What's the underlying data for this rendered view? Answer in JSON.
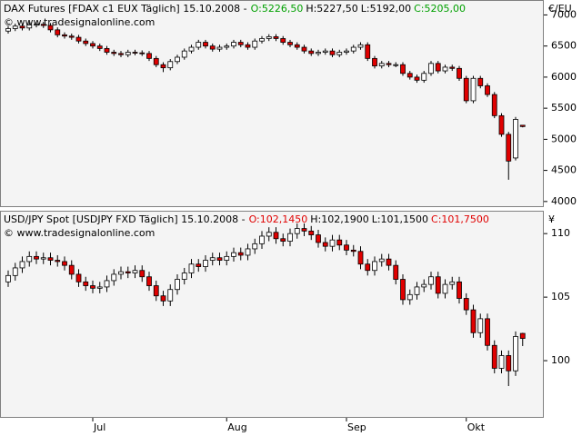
{
  "chart_data": [
    {
      "type": "candlestick",
      "title": "DAX Futures [FDAX c1 EUX  Täglich]  15.10.2008 -",
      "quote": [
        {
          "label": "O:5226,50",
          "color": "#00a000"
        },
        {
          "label": "H:5227,50",
          "color": "#000000"
        },
        {
          "label": "L:5192,00",
          "color": "#000000"
        },
        {
          "label": "C:5205,00",
          "color": "#00a000"
        }
      ],
      "watermark": "© www.tradesignalonline.com",
      "unit": "€/EU",
      "up_color": "#ffffff",
      "down_color": "#e00000",
      "ylim": [
        3910,
        7240
      ],
      "yticks": [
        4000,
        4500,
        5000,
        5500,
        6000,
        6500,
        7000
      ],
      "open": [
        6740,
        6780,
        6820,
        6790,
        6840,
        6850,
        6830,
        6760,
        6680,
        6660,
        6640,
        6580,
        6540,
        6500,
        6460,
        6400,
        6380,
        6360,
        6400,
        6390,
        6380,
        6300,
        6200,
        6150,
        6250,
        6320,
        6420,
        6480,
        6560,
        6500,
        6450,
        6480,
        6500,
        6560,
        6520,
        6480,
        6580,
        6620,
        6650,
        6620,
        6560,
        6520,
        6480,
        6420,
        6380,
        6400,
        6420,
        6360,
        6400,
        6420,
        6480,
        6520,
        6300,
        6180,
        6220,
        6200,
        6200,
        6060,
        6000,
        5950,
        6060,
        6220,
        6100,
        6160,
        6140,
        5980,
        5620,
        5980,
        5860,
        5720,
        5380,
        5080,
        4700,
        5226.5
      ],
      "high": [
        6820,
        6860,
        6860,
        6880,
        6890,
        6890,
        6870,
        6800,
        6720,
        6700,
        6680,
        6620,
        6580,
        6540,
        6500,
        6440,
        6420,
        6440,
        6440,
        6430,
        6420,
        6340,
        6240,
        6290,
        6360,
        6460,
        6520,
        6600,
        6600,
        6540,
        6520,
        6540,
        6600,
        6600,
        6560,
        6620,
        6660,
        6690,
        6690,
        6660,
        6600,
        6560,
        6520,
        6460,
        6440,
        6460,
        6460,
        6440,
        6460,
        6520,
        6560,
        6560,
        6340,
        6260,
        6260,
        6240,
        6240,
        6100,
        6040,
        6100,
        6260,
        6260,
        6200,
        6200,
        6180,
        6020,
        6020,
        6020,
        5900,
        5760,
        5420,
        5120,
        5360,
        5227.5
      ],
      "low": [
        6700,
        6740,
        6750,
        6750,
        6800,
        6790,
        6720,
        6640,
        6620,
        6600,
        6540,
        6500,
        6460,
        6420,
        6360,
        6340,
        6320,
        6320,
        6350,
        6340,
        6260,
        6160,
        6080,
        6110,
        6210,
        6280,
        6380,
        6440,
        6460,
        6410,
        6410,
        6440,
        6460,
        6480,
        6440,
        6440,
        6540,
        6580,
        6580,
        6520,
        6480,
        6440,
        6380,
        6340,
        6340,
        6360,
        6320,
        6320,
        6360,
        6380,
        6440,
        6260,
        6140,
        6140,
        6160,
        6160,
        6020,
        5960,
        5910,
        5910,
        6020,
        6060,
        6060,
        6100,
        5940,
        5580,
        5580,
        5820,
        5680,
        5340,
        5040,
        4350,
        4660,
        5192
      ],
      "close": [
        6780,
        6820,
        6790,
        6840,
        6850,
        6830,
        6760,
        6680,
        6660,
        6640,
        6580,
        6540,
        6500,
        6460,
        6400,
        6380,
        6360,
        6400,
        6390,
        6380,
        6300,
        6200,
        6150,
        6250,
        6320,
        6420,
        6480,
        6560,
        6500,
        6450,
        6480,
        6500,
        6560,
        6520,
        6480,
        6580,
        6620,
        6650,
        6620,
        6560,
        6520,
        6480,
        6420,
        6380,
        6400,
        6420,
        6360,
        6400,
        6420,
        6480,
        6520,
        6300,
        6180,
        6220,
        6200,
        6200,
        6060,
        6000,
        5950,
        6060,
        6220,
        6100,
        6160,
        6140,
        5980,
        5620,
        5980,
        5860,
        5720,
        5380,
        5080,
        4650,
        5320,
        5205
      ]
    },
    {
      "type": "candlestick",
      "title": "USD/JPY Spot [USDJPY FXD  Täglich]  15.10.2008 -",
      "quote": [
        {
          "label": "O:102,1450",
          "color": "#e00000"
        },
        {
          "label": "H:102,1900",
          "color": "#000000"
        },
        {
          "label": "L:101,1500",
          "color": "#000000"
        },
        {
          "label": "C:101,7500",
          "color": "#e00000"
        }
      ],
      "watermark": "© www.tradesignalonline.com",
      "unit": "¥",
      "up_color": "#ffffff",
      "down_color": "#e00000",
      "ylim": [
        95.5,
        111.8
      ],
      "yticks": [
        100,
        105,
        110
      ],
      "categories": [
        null,
        null,
        null,
        null,
        null,
        null,
        null,
        null,
        null,
        null,
        null,
        null,
        "Jul",
        null,
        null,
        null,
        null,
        null,
        null,
        null,
        null,
        null,
        null,
        null,
        null,
        null,
        null,
        null,
        null,
        null,
        null,
        "Aug",
        null,
        null,
        null,
        null,
        null,
        null,
        null,
        null,
        null,
        null,
        null,
        null,
        null,
        null,
        null,
        null,
        "Sep",
        null,
        null,
        null,
        null,
        null,
        null,
        null,
        null,
        null,
        null,
        null,
        null,
        null,
        null,
        null,
        null,
        "Okt",
        null,
        null,
        null,
        null,
        null,
        null,
        null,
        null
      ],
      "open": [
        106.2,
        106.7,
        107.3,
        107.8,
        108.2,
        108.0,
        108.1,
        107.9,
        107.8,
        107.5,
        106.8,
        106.2,
        105.9,
        105.7,
        105.8,
        106.3,
        106.8,
        107.0,
        106.9,
        107.1,
        106.6,
        105.9,
        105.1,
        104.7,
        105.6,
        106.4,
        106.9,
        107.6,
        107.4,
        107.9,
        108.1,
        107.9,
        108.2,
        108.5,
        108.3,
        108.8,
        109.2,
        109.8,
        110.1,
        109.6,
        109.4,
        110.0,
        110.4,
        110.2,
        109.9,
        109.3,
        109.0,
        109.5,
        109.1,
        108.7,
        108.6,
        107.6,
        107.1,
        107.8,
        108.0,
        107.5,
        106.4,
        104.8,
        105.2,
        105.8,
        106.0,
        106.6,
        105.3,
        106.0,
        106.2,
        104.9,
        104.0,
        102.2,
        103.3,
        101.2,
        99.4,
        100.4,
        99.2,
        102.145
      ],
      "high": [
        107.1,
        107.7,
        108.2,
        108.6,
        108.6,
        108.5,
        108.5,
        108.3,
        108.2,
        107.9,
        107.2,
        106.6,
        106.3,
        106.2,
        106.7,
        107.2,
        107.4,
        107.4,
        107.5,
        107.5,
        107.0,
        106.3,
        105.5,
        106.0,
        106.8,
        107.3,
        108.0,
        108.0,
        108.3,
        108.5,
        108.5,
        108.6,
        108.9,
        108.9,
        109.2,
        109.6,
        110.2,
        110.5,
        110.5,
        110.0,
        110.4,
        110.8,
        110.8,
        110.6,
        110.3,
        109.7,
        109.9,
        109.9,
        109.5,
        109.1,
        109.0,
        108.0,
        108.2,
        108.4,
        108.4,
        107.9,
        106.8,
        105.6,
        106.2,
        106.4,
        107.0,
        107.0,
        106.4,
        106.6,
        106.6,
        105.3,
        104.4,
        103.7,
        103.7,
        101.6,
        100.8,
        100.8,
        102.3,
        102.19
      ],
      "low": [
        105.8,
        106.3,
        106.9,
        107.4,
        107.6,
        107.6,
        107.5,
        107.4,
        107.1,
        106.4,
        105.8,
        105.5,
        105.3,
        105.3,
        105.4,
        105.9,
        106.4,
        106.5,
        106.5,
        106.2,
        105.5,
        104.7,
        104.3,
        104.3,
        105.2,
        106.0,
        106.5,
        107.0,
        107.0,
        107.5,
        107.5,
        107.5,
        107.8,
        107.9,
        107.9,
        108.4,
        108.8,
        109.4,
        109.2,
        109.0,
        109.0,
        109.6,
        109.8,
        109.5,
        108.9,
        108.6,
        108.6,
        108.7,
        108.3,
        108.2,
        107.2,
        106.7,
        106.7,
        107.4,
        107.1,
        106.0,
        104.4,
        104.4,
        104.8,
        105.4,
        105.6,
        104.9,
        104.9,
        105.6,
        104.5,
        103.6,
        101.8,
        101.8,
        100.8,
        99.0,
        99.0,
        98.0,
        98.8,
        101.15
      ],
      "close": [
        106.7,
        107.3,
        107.8,
        108.2,
        108.0,
        108.1,
        107.9,
        107.8,
        107.5,
        106.8,
        106.2,
        105.9,
        105.7,
        105.8,
        106.3,
        106.8,
        107.0,
        106.9,
        107.1,
        106.6,
        105.9,
        105.1,
        104.7,
        105.6,
        106.4,
        106.9,
        107.6,
        107.4,
        107.9,
        108.1,
        107.9,
        108.2,
        108.5,
        108.3,
        108.8,
        109.2,
        109.8,
        110.1,
        109.6,
        109.4,
        110.0,
        110.4,
        110.2,
        109.9,
        109.3,
        109.0,
        109.5,
        109.1,
        108.7,
        108.6,
        107.6,
        107.1,
        107.8,
        108.0,
        107.5,
        106.4,
        104.8,
        105.2,
        105.8,
        106.0,
        106.6,
        105.3,
        106.0,
        106.2,
        104.9,
        104.0,
        102.2,
        103.3,
        101.2,
        99.4,
        100.4,
        99.2,
        101.9,
        101.75
      ]
    }
  ]
}
